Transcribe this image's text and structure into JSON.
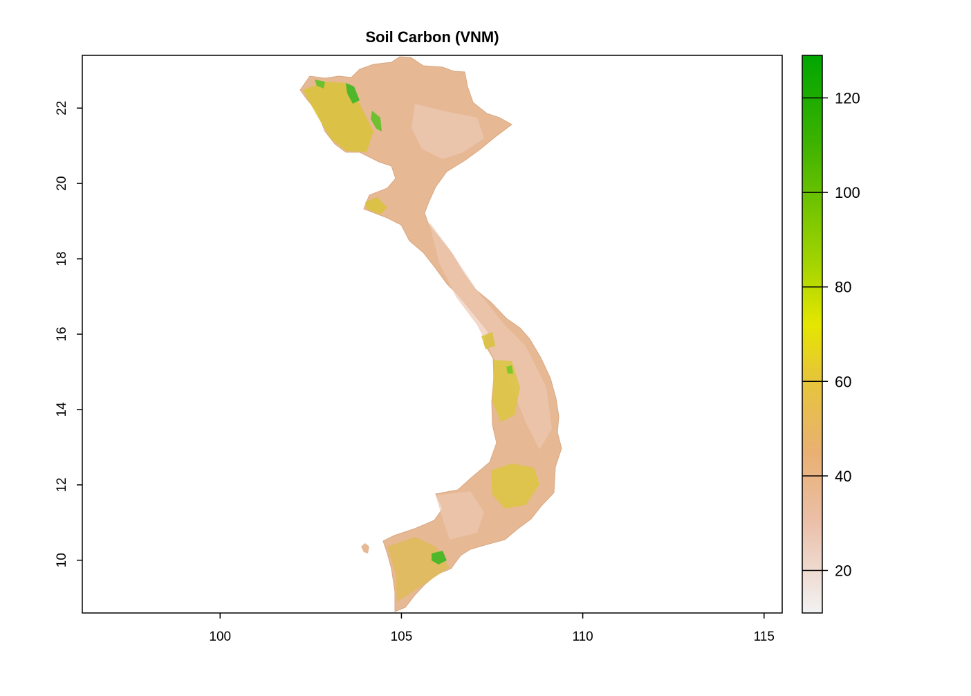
{
  "title": "Soil Carbon (VNM)",
  "map": {
    "x_range": [
      96.2,
      115.5
    ],
    "y_range": [
      8.6,
      23.4
    ],
    "x_ticks": [
      {
        "value": 100,
        "label": "100"
      },
      {
        "value": 105,
        "label": "105"
      },
      {
        "value": 110,
        "label": "110"
      },
      {
        "value": 115,
        "label": "115"
      }
    ],
    "y_ticks": [
      {
        "value": 10,
        "label": "10"
      },
      {
        "value": 12,
        "label": "12"
      },
      {
        "value": 14,
        "label": "14"
      },
      {
        "value": 16,
        "label": "16"
      },
      {
        "value": 18,
        "label": "18"
      },
      {
        "value": 20,
        "label": "20"
      },
      {
        "value": 22,
        "label": "22"
      }
    ],
    "land_color": "#e6b894",
    "high_color": "#d9c23a",
    "peak_color": "#4fb82a"
  },
  "legend": {
    "range": [
      11,
      129
    ],
    "ticks": [
      {
        "value": 20,
        "label": "20"
      },
      {
        "value": 40,
        "label": "40"
      },
      {
        "value": 60,
        "label": "60"
      },
      {
        "value": 80,
        "label": "80"
      },
      {
        "value": 100,
        "label": "100"
      },
      {
        "value": 120,
        "label": "120"
      }
    ],
    "color_stops": [
      {
        "value": 11,
        "color": "#f2f2f2"
      },
      {
        "value": 30,
        "color": "#ebc0aa"
      },
      {
        "value": 45,
        "color": "#e9b072"
      },
      {
        "value": 62,
        "color": "#e6c833"
      },
      {
        "value": 72,
        "color": "#e5e600"
      },
      {
        "value": 85,
        "color": "#a3d400"
      },
      {
        "value": 110,
        "color": "#3fb300"
      },
      {
        "value": 129,
        "color": "#00a600"
      }
    ]
  }
}
